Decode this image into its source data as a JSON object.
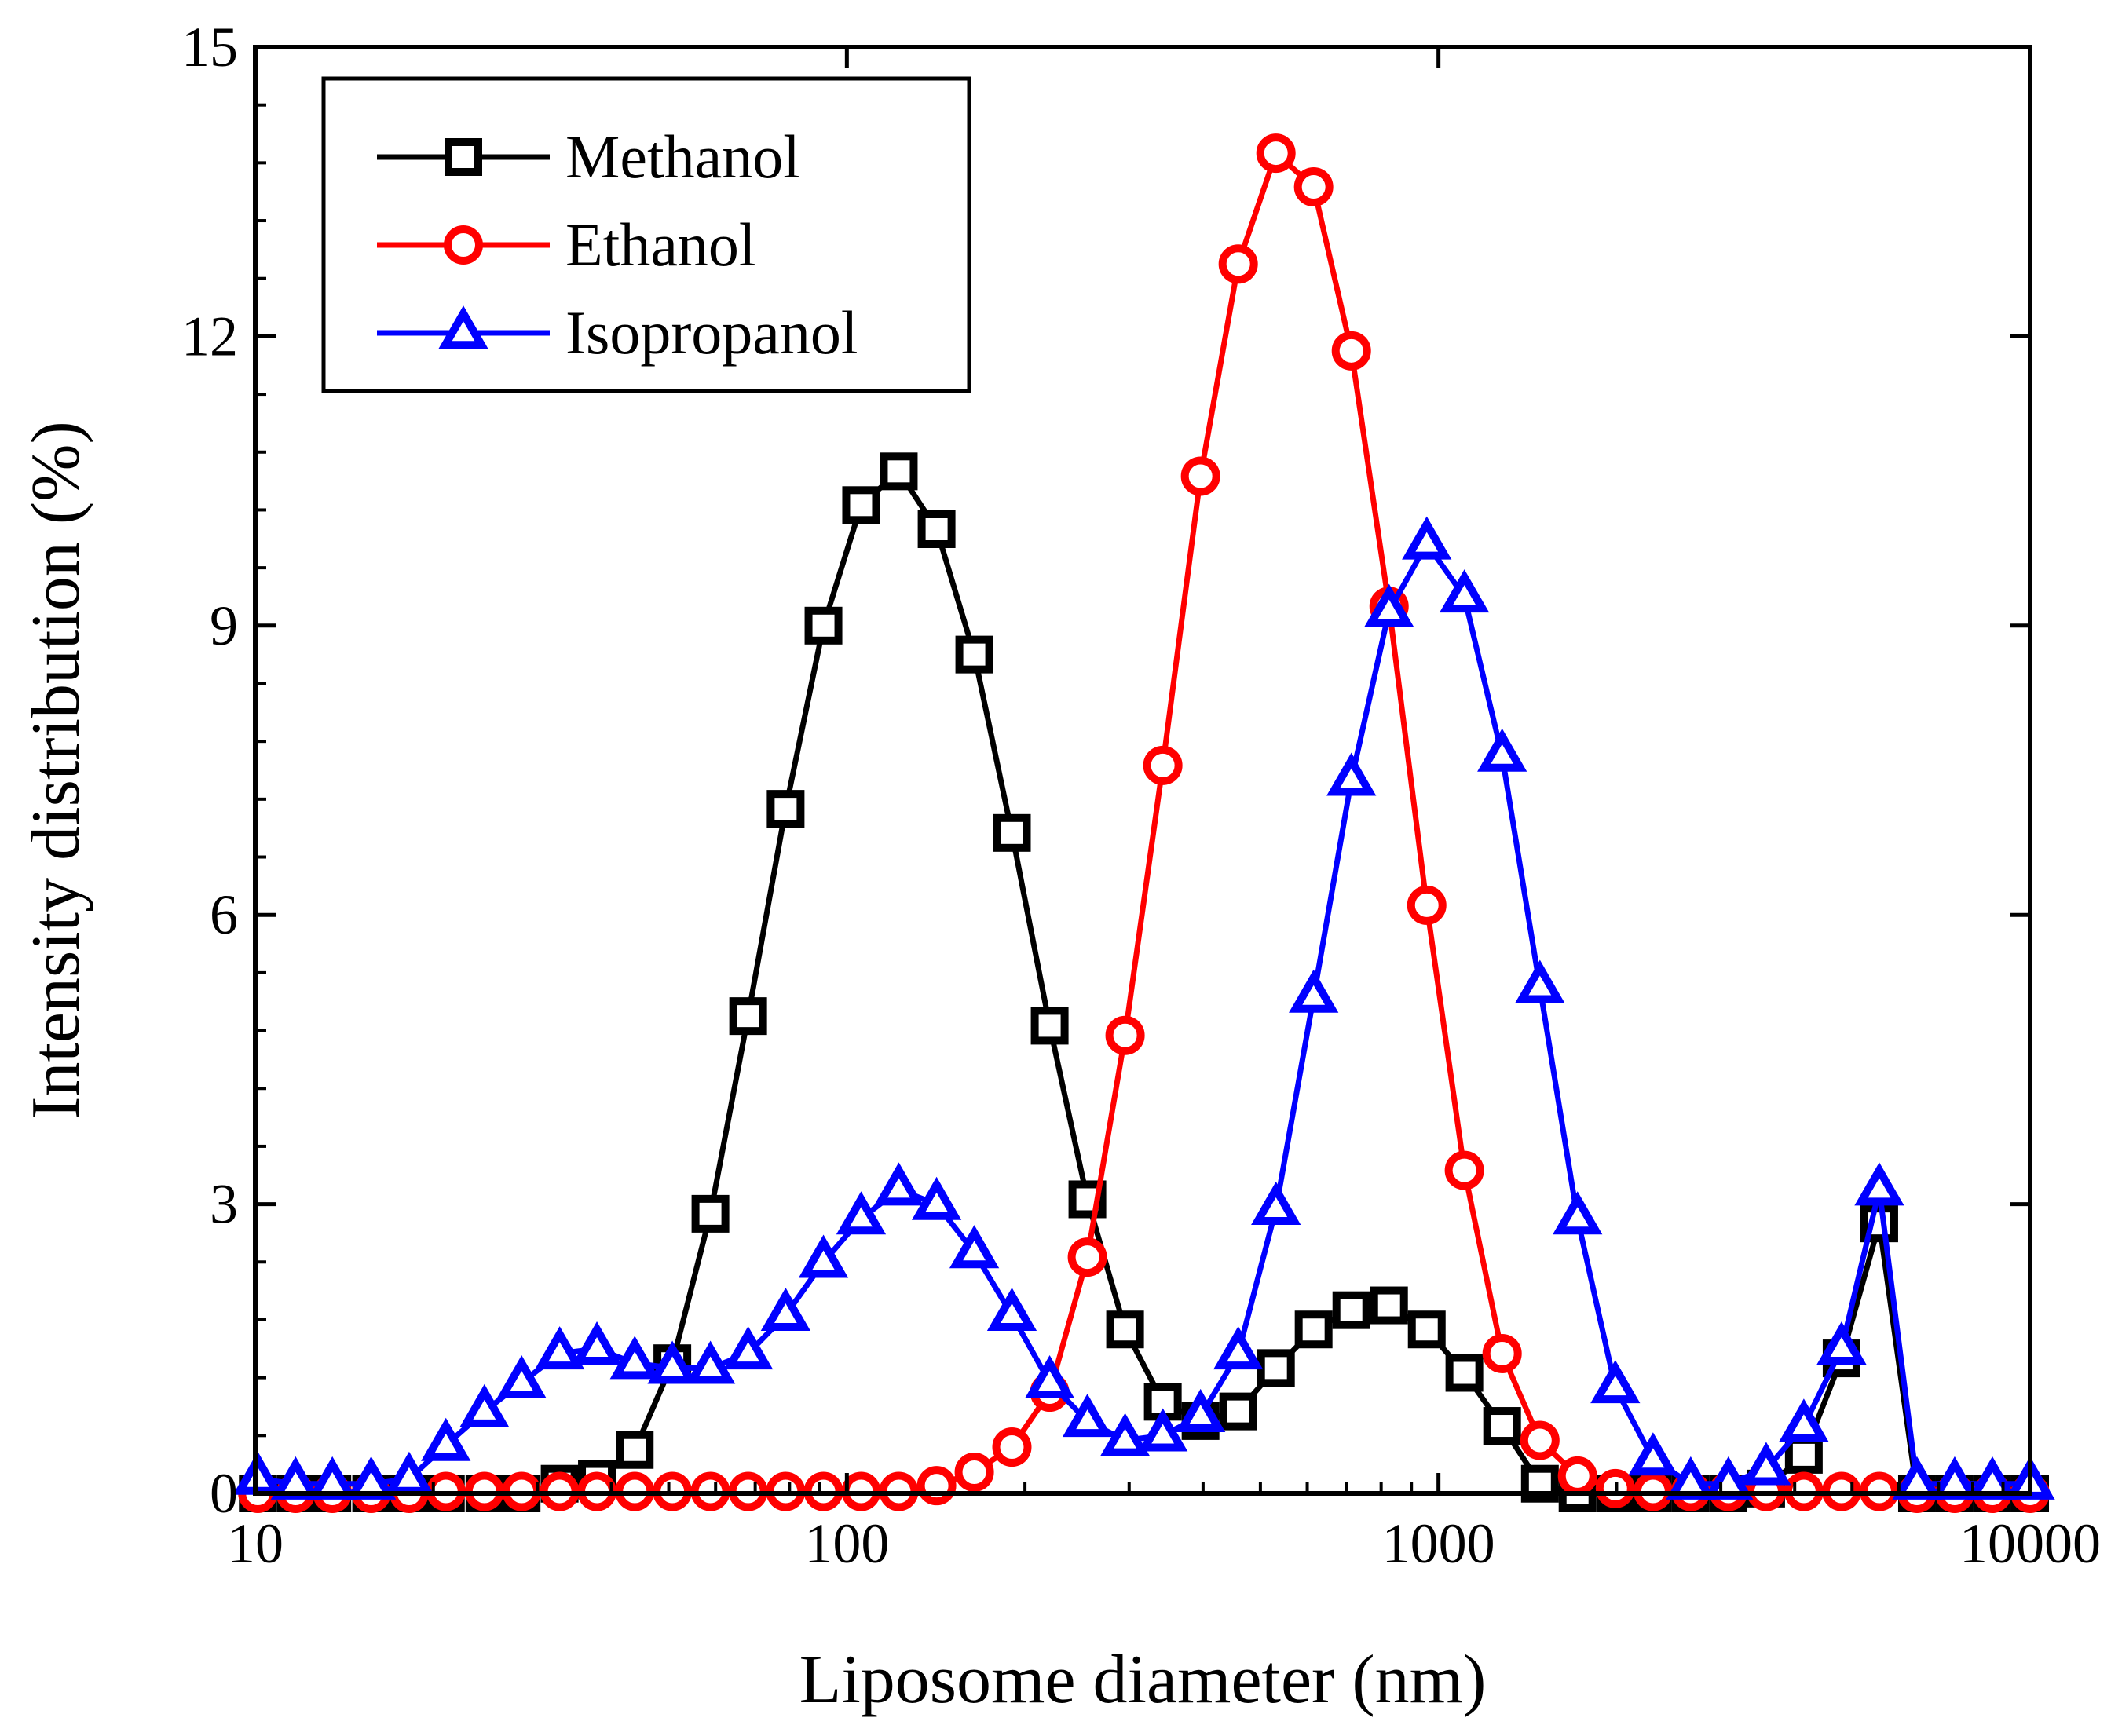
{
  "chart_data": {
    "type": "line",
    "title": "",
    "xlabel": "Liposome diameter (nm)",
    "ylabel": "Intensity distribution (%)",
    "xscale": "log",
    "xlim": [
      10,
      10000
    ],
    "ylim": [
      0,
      15
    ],
    "xticks": [
      10,
      100,
      1000,
      10000
    ],
    "xtick_labels": [
      "10",
      "100",
      "1000",
      "10000"
    ],
    "yticks": [
      0,
      3,
      6,
      9,
      12,
      15
    ],
    "ytick_labels": [
      "0",
      "3",
      "6",
      "9",
      "12",
      "15"
    ],
    "grid": false,
    "legend": "top-left",
    "x": [
      10.1,
      11.7,
      13.5,
      15.7,
      18.2,
      21.0,
      24.4,
      28.2,
      32.7,
      37.8,
      43.8,
      50.7,
      58.8,
      68.1,
      78.8,
      91.3,
      105.7,
      122.4,
      141.8,
      164.2,
      190.1,
      220.2,
      255.0,
      295.3,
      342.0,
      396.1,
      458.7,
      531.2,
      615.1,
      712.4,
      825.0,
      955.4,
      1106,
      1281,
      1484,
      1718,
      1990,
      2305,
      2669,
      3091,
      3580,
      4145,
      4801,
      5560,
      6439,
      7456,
      8635,
      10000
    ],
    "series": [
      {
        "name": "Methanol",
        "color": "#000000",
        "marker": "square",
        "values": [
          0,
          0,
          0,
          0,
          0,
          0,
          0,
          0,
          0.1,
          0.15,
          0.45,
          1.35,
          2.9,
          4.95,
          7.1,
          9.0,
          10.25,
          10.6,
          10.0,
          8.7,
          6.85,
          4.85,
          3.05,
          1.7,
          0.95,
          0.75,
          0.85,
          1.3,
          1.7,
          1.9,
          1.95,
          1.7,
          1.25,
          0.7,
          0.1,
          0,
          0,
          0,
          0,
          0,
          0.05,
          0.4,
          1.4,
          2.8,
          0,
          0,
          0,
          0
        ]
      },
      {
        "name": "Ethanol",
        "color": "#ff0000",
        "marker": "circle",
        "values": [
          0,
          0,
          0,
          0,
          0,
          0.02,
          0.02,
          0.02,
          0.02,
          0.02,
          0.02,
          0.02,
          0.02,
          0.02,
          0.02,
          0.02,
          0.02,
          0.02,
          0.08,
          0.22,
          0.48,
          1.05,
          2.45,
          4.75,
          7.55,
          10.55,
          12.75,
          13.9,
          13.55,
          11.85,
          9.2,
          6.1,
          3.35,
          1.45,
          0.55,
          0.18,
          0.05,
          0.02,
          0.02,
          0.02,
          0.02,
          0.02,
          0.02,
          0.02,
          0,
          0,
          0,
          0
        ]
      },
      {
        "name": "Isopropanol",
        "color": "#0000ff",
        "marker": "triangle",
        "values": [
          0.15,
          0.1,
          0.1,
          0.1,
          0.15,
          0.5,
          0.85,
          1.15,
          1.45,
          1.5,
          1.35,
          1.3,
          1.3,
          1.45,
          1.85,
          2.4,
          2.85,
          3.15,
          3.0,
          2.5,
          1.85,
          1.15,
          0.75,
          0.55,
          0.6,
          0.8,
          1.45,
          2.95,
          5.15,
          7.4,
          9.15,
          9.85,
          9.3,
          7.65,
          5.25,
          2.85,
          1.1,
          0.35,
          0.1,
          0.1,
          0.25,
          0.7,
          1.5,
          3.15,
          0.1,
          0.1,
          0.1,
          0.1
        ]
      }
    ]
  }
}
